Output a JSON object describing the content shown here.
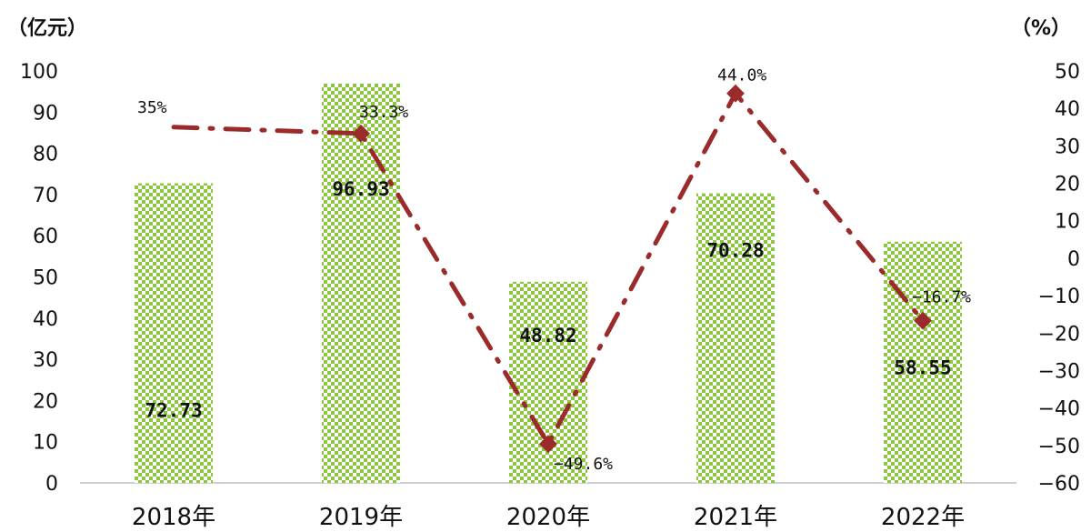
{
  "chart_data": {
    "type": "bar",
    "left_unit": "（亿元）",
    "right_unit": "（%）",
    "categories": [
      "2018年",
      "2019年",
      "2020年",
      "2021年",
      "2022年"
    ],
    "series": [
      {
        "type": "bar",
        "axis": "left",
        "values": [
          72.73,
          96.93,
          48.82,
          70.28,
          58.55
        ],
        "labels": [
          "72.73",
          "96.93",
          "48.82",
          "70.28",
          "58.55"
        ],
        "color": "#8CC63F"
      },
      {
        "type": "line",
        "axis": "right",
        "values": [
          35,
          33.3,
          -49.6,
          44.0,
          -16.7
        ],
        "labels": [
          "35%",
          "33.3%",
          "-49.6%",
          "44.0%",
          "-16.7%"
        ],
        "color": "#9B2B2B"
      }
    ],
    "ylim_left": [
      0,
      100
    ],
    "ylim_right": [
      -60,
      50
    ],
    "yticks_left": [
      "0",
      "10",
      "20",
      "30",
      "40",
      "50",
      "60",
      "70",
      "80",
      "90",
      "100"
    ],
    "yticks_right": [
      "-60",
      "-50",
      "-40",
      "-30",
      "-20",
      "-10",
      "0",
      "10",
      "20",
      "30",
      "40",
      "50"
    ],
    "grid": false
  }
}
